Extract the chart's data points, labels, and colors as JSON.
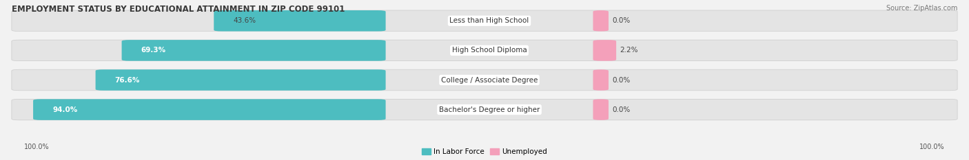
{
  "title": "EMPLOYMENT STATUS BY EDUCATIONAL ATTAINMENT IN ZIP CODE 99101",
  "source": "Source: ZipAtlas.com",
  "categories": [
    "Less than High School",
    "High School Diploma",
    "College / Associate Degree",
    "Bachelor's Degree or higher"
  ],
  "labor_force": [
    43.6,
    69.3,
    76.6,
    94.0
  ],
  "unemployed": [
    0.0,
    2.2,
    0.0,
    0.0
  ],
  "bar_color_labor": "#4DBDC0",
  "bar_color_unemployed": "#F4A0BA",
  "bg_color": "#F2F2F2",
  "bar_bg_color": "#E4E4E4",
  "left_label": "100.0%",
  "right_label": "100.0%",
  "legend_labor": "In Labor Force",
  "legend_unemployed": "Unemployed",
  "title_fontsize": 8.5,
  "source_fontsize": 7,
  "bar_label_fontsize": 7.5,
  "cat_label_fontsize": 7.5
}
